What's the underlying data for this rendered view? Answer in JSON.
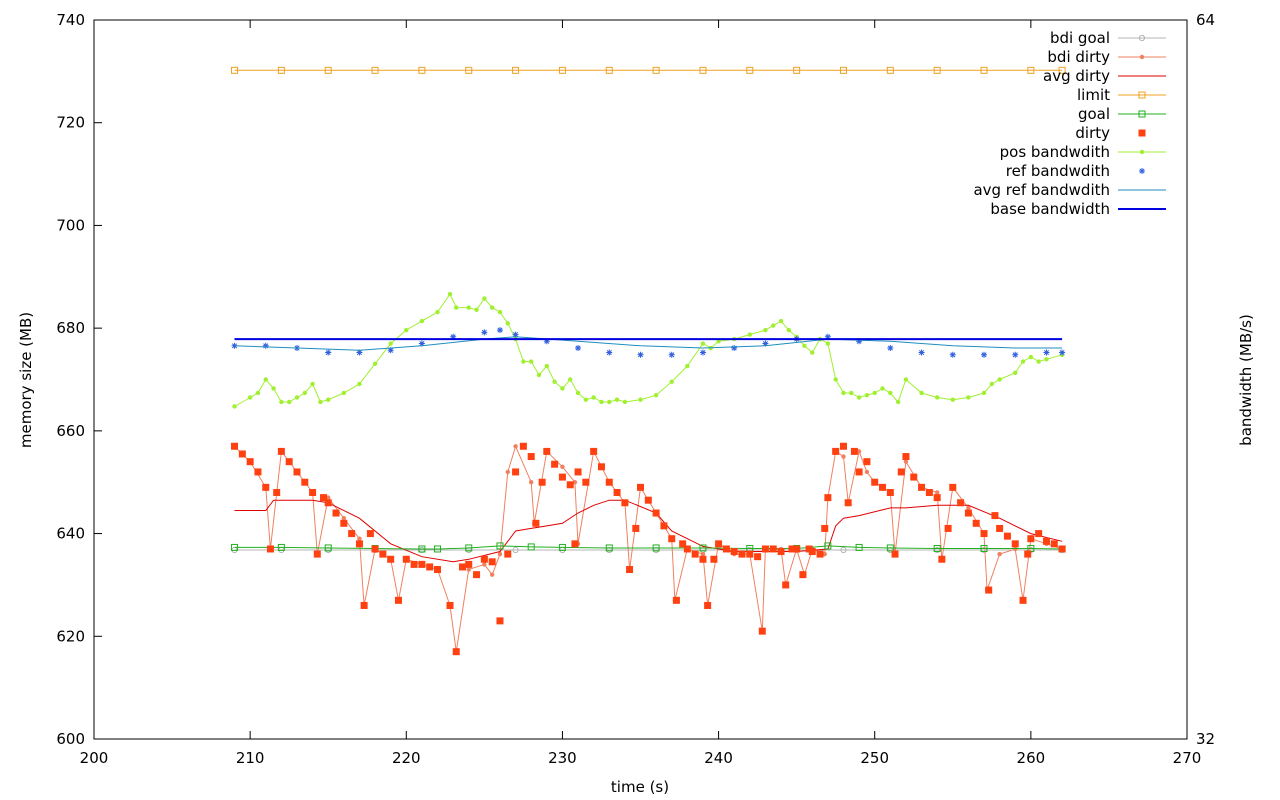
{
  "chart_data": {
    "type": "line",
    "xlabel": "time (s)",
    "ylabel": "memory size (MB)",
    "y2label": "bandwidth (MB/s)",
    "xlim": [
      200,
      270
    ],
    "ylim": [
      600,
      740
    ],
    "y2lim": [
      32,
      64
    ],
    "x_ticks": [
      200,
      210,
      220,
      230,
      240,
      250,
      260,
      270
    ],
    "y_ticks": [
      600,
      620,
      640,
      660,
      680,
      700,
      720,
      740
    ],
    "y2_ticks": [
      32,
      64
    ],
    "legend_position": "top-right",
    "grid": false,
    "series": [
      {
        "name": "bdi goal",
        "color": "#b4b4b4",
        "axis": "y",
        "style": "linespoints",
        "marker": "circle",
        "x": [
          209,
          212,
          215,
          218,
          221,
          224,
          227,
          230,
          233,
          236,
          239,
          242,
          245,
          248,
          251,
          254,
          257,
          260,
          262
        ],
        "y": [
          636.8,
          636.8,
          636.8,
          636.8,
          636.8,
          636.8,
          636.8,
          636.8,
          636.8,
          636.8,
          636.8,
          636.8,
          636.8,
          636.8,
          636.8,
          636.8,
          636.8,
          636.8,
          636.8
        ]
      },
      {
        "name": "bdi dirty",
        "color": "#f08060",
        "axis": "y",
        "style": "linespoints",
        "marker": "dot",
        "x": [
          209,
          210,
          211,
          211.3,
          212,
          213,
          214,
          214.3,
          215,
          216,
          217,
          217.3,
          218,
          219,
          219.5,
          220,
          221,
          222,
          222.8,
          223.2,
          224,
          225,
          225.5,
          226,
          226.5,
          227,
          228,
          228.2,
          229,
          230,
          230.8,
          231,
          232,
          233,
          234,
          234.3,
          235,
          236,
          237,
          237.2,
          238,
          239,
          239.3,
          240,
          241,
          242,
          242.8,
          243,
          244,
          244.3,
          245,
          245.5,
          246,
          246.8,
          247,
          247.5,
          248,
          248.3,
          249,
          249.5,
          250,
          251,
          251.3,
          252,
          253,
          254,
          254.3,
          255,
          256,
          257,
          257.2,
          258,
          259,
          259.5,
          260,
          261,
          262
        ],
        "y": [
          657,
          654,
          649,
          637,
          656,
          652,
          648,
          636,
          647,
          643,
          639,
          626,
          637,
          635,
          627,
          635,
          634,
          633,
          626,
          617,
          633,
          634,
          632,
          636,
          652,
          657,
          650,
          642,
          656,
          653,
          650,
          638,
          656,
          650,
          646,
          633,
          649,
          644,
          639,
          627,
          637,
          636,
          626,
          638,
          636,
          636,
          621,
          637,
          637,
          630,
          637,
          632,
          637,
          636,
          647,
          656,
          655,
          646,
          656,
          652,
          650,
          648,
          636,
          654,
          649,
          648,
          635,
          649,
          645,
          640,
          629,
          636,
          637,
          627,
          639,
          638,
          637
        ]
      },
      {
        "name": "avg dirty",
        "color": "#e00000",
        "axis": "y",
        "style": "lines",
        "x": [
          209,
          211,
          211.5,
          214,
          215,
          217,
          219,
          221,
          223,
          224,
          226,
          226.5,
          227,
          228,
          229,
          230,
          231,
          232,
          233,
          234,
          236,
          237,
          239,
          241,
          243,
          245,
          247,
          247.5,
          248,
          249,
          251,
          252,
          254,
          256,
          258,
          260,
          262
        ],
        "y": [
          644.5,
          644.5,
          646.5,
          646.5,
          646,
          643,
          638,
          635.5,
          634.5,
          635,
          636.5,
          638.5,
          640.5,
          641,
          641.5,
          642,
          644,
          645.5,
          646.5,
          646.5,
          644,
          640.5,
          637.5,
          636.5,
          636.5,
          636.5,
          637,
          641.5,
          643,
          643.5,
          645,
          645,
          645.5,
          645.5,
          643,
          640,
          638.5
        ]
      },
      {
        "name": "limit",
        "color": "#f0a020",
        "axis": "y",
        "style": "linespoints",
        "marker": "square",
        "x": [
          209,
          212,
          215,
          218,
          221,
          224,
          227,
          230,
          233,
          236,
          239,
          242,
          245,
          248,
          251,
          254,
          257,
          260,
          262
        ],
        "y": [
          730.2,
          730.2,
          730.2,
          730.2,
          730.2,
          730.2,
          730.2,
          730.2,
          730.2,
          730.2,
          730.2,
          730.2,
          730.2,
          730.2,
          730.2,
          730.2,
          730.2,
          730.2,
          730.2
        ]
      },
      {
        "name": "goal",
        "color": "#20b020",
        "axis": "y",
        "style": "linespoints",
        "marker": "square",
        "x": [
          209,
          212,
          215,
          218,
          221,
          222,
          224,
          226,
          228,
          230,
          233,
          236,
          239,
          242,
          245,
          247,
          249,
          251,
          254,
          257,
          260,
          262
        ],
        "y": [
          637.3,
          637.3,
          637.2,
          637.1,
          637,
          637,
          637.2,
          637.6,
          637.4,
          637.3,
          637.2,
          637.2,
          637.2,
          637.1,
          637.1,
          637.6,
          637.3,
          637.2,
          637.1,
          637.1,
          637.1,
          637
        ]
      },
      {
        "name": "dirty",
        "color": "#ff4010",
        "axis": "y",
        "style": "points",
        "marker": "filled-square",
        "x": [
          209,
          209.5,
          210,
          210.5,
          211,
          211.3,
          211.7,
          212,
          212.5,
          213,
          213.5,
          214,
          214.3,
          214.7,
          215,
          215.5,
          216,
          216.5,
          217,
          217.3,
          217.7,
          218,
          218.5,
          219,
          219.5,
          220,
          220.5,
          221,
          221.5,
          222,
          222.8,
          223.2,
          223.6,
          224,
          224.5,
          225,
          225.5,
          226,
          226.5,
          227,
          227.5,
          228,
          228.3,
          228.7,
          229,
          229.5,
          230,
          230.5,
          230.8,
          231,
          231.5,
          232,
          232.5,
          233,
          233.5,
          234,
          234.3,
          234.7,
          235,
          235.5,
          236,
          236.5,
          237,
          237.3,
          237.7,
          238,
          238.5,
          239,
          239.3,
          239.7,
          240,
          240.5,
          241,
          241.5,
          242,
          242.5,
          242.8,
          243,
          243.5,
          244,
          244.3,
          244.7,
          245,
          245.4,
          245.8,
          246,
          246.5,
          246.8,
          247,
          247.5,
          248,
          248.3,
          248.7,
          249,
          249.5,
          250,
          250.5,
          251,
          251.3,
          251.7,
          252,
          252.5,
          253,
          253.5,
          254,
          254.3,
          254.7,
          255,
          255.5,
          256,
          256.5,
          257,
          257.3,
          257.7,
          258,
          258.5,
          259,
          259.5,
          259.8,
          260,
          260.5,
          261,
          261.5,
          262
        ],
        "y": [
          657,
          655.5,
          654,
          652,
          649,
          637,
          648,
          656,
          654,
          652,
          650,
          648,
          636,
          647,
          646,
          644,
          642,
          640,
          638,
          626,
          640,
          637,
          636,
          635,
          627,
          635,
          634,
          634,
          633.5,
          633,
          626,
          617,
          633.5,
          634,
          632,
          635,
          634.5,
          623,
          636,
          652,
          657,
          655,
          642,
          650,
          656,
          653.5,
          651,
          649.5,
          638,
          652,
          650,
          656,
          653,
          650,
          648,
          646,
          633,
          641,
          649,
          646.5,
          644,
          641.5,
          639,
          627,
          638,
          637,
          636,
          635,
          626,
          635,
          638,
          637,
          636.5,
          636,
          636,
          635.5,
          621,
          637,
          637,
          636.5,
          630,
          637,
          637,
          632,
          637,
          636.5,
          636,
          641,
          647,
          656,
          657,
          646,
          656,
          652,
          654,
          650,
          649,
          648,
          636,
          652,
          655,
          651,
          649,
          648,
          647,
          635,
          641,
          649,
          646,
          644,
          642,
          640,
          629,
          643.5,
          641,
          639.5,
          638,
          627,
          636,
          639,
          640,
          638.5,
          638,
          637
        ]
      },
      {
        "name": "pos bandwdith",
        "color": "#a0f030",
        "axis": "y2",
        "style": "linespoints",
        "marker": "dot",
        "x": [
          209,
          210,
          210.5,
          211,
          211.5,
          212,
          212.5,
          213,
          213.5,
          214,
          214.5,
          215,
          216,
          217,
          218,
          219,
          220,
          221,
          222,
          222.8,
          223.2,
          224,
          224.5,
          225,
          225.5,
          226,
          226.5,
          227,
          227.5,
          228,
          228.5,
          229,
          229.5,
          230,
          230.5,
          231,
          231.5,
          232,
          232.5,
          233,
          233.5,
          234,
          235,
          236,
          237,
          238,
          239,
          239.5,
          240,
          241,
          242,
          243,
          243.5,
          244,
          244.5,
          245,
          245.5,
          246,
          246.5,
          247,
          247.5,
          248,
          248.5,
          249,
          249.5,
          250,
          250.5,
          251,
          251.5,
          252,
          253,
          254,
          255,
          256,
          257,
          257.5,
          258,
          259,
          259.5,
          260,
          260.5,
          261,
          262
        ],
        "y": [
          46.8,
          47.2,
          47.4,
          48.0,
          47.6,
          47.0,
          47.0,
          47.2,
          47.4,
          47.8,
          47.0,
          47.1,
          47.4,
          47.8,
          48.7,
          49.6,
          50.2,
          50.6,
          51.0,
          51.8,
          51.2,
          51.2,
          51.1,
          51.6,
          51.2,
          51.0,
          50.5,
          49.8,
          48.8,
          48.8,
          48.2,
          48.6,
          47.9,
          47.6,
          48.0,
          47.4,
          47.1,
          47.2,
          47.0,
          47.0,
          47.1,
          47.0,
          47.1,
          47.3,
          47.9,
          48.6,
          49.6,
          49.4,
          49.7,
          49.8,
          50.0,
          50.2,
          50.4,
          50.6,
          50.2,
          49.9,
          49.5,
          49.2,
          49.8,
          49.6,
          48.0,
          47.4,
          47.4,
          47.2,
          47.3,
          47.4,
          47.6,
          47.4,
          47.0,
          48.0,
          47.4,
          47.2,
          47.1,
          47.2,
          47.4,
          47.8,
          48.0,
          48.3,
          48.8,
          49.0,
          48.8,
          48.9,
          49.1
        ]
      },
      {
        "name": "ref bandwdith",
        "color": "#3060e0",
        "axis": "y2",
        "style": "points",
        "marker": "star",
        "x": [
          209,
          211,
          213,
          215,
          217,
          219,
          221,
          223,
          225,
          226,
          227,
          229,
          231,
          233,
          235,
          237,
          239,
          241,
          243,
          245,
          247,
          249,
          251,
          253,
          255,
          257,
          259,
          261,
          262
        ],
        "y": [
          49.5,
          49.5,
          49.4,
          49.2,
          49.2,
          49.3,
          49.6,
          49.9,
          50.1,
          50.2,
          50.0,
          49.7,
          49.4,
          49.2,
          49.1,
          49.1,
          49.2,
          49.4,
          49.6,
          49.8,
          49.9,
          49.7,
          49.4,
          49.2,
          49.1,
          49.1,
          49.1,
          49.2,
          49.2
        ]
      },
      {
        "name": "avg ref bandwdith",
        "color": "#1e8ec0",
        "axis": "y2",
        "style": "lines",
        "x": [
          209,
          213,
          217,
          221,
          225,
          227,
          231,
          235,
          239,
          243,
          247,
          251,
          255,
          259,
          262
        ],
        "y": [
          49.5,
          49.4,
          49.3,
          49.5,
          49.8,
          49.9,
          49.7,
          49.5,
          49.4,
          49.5,
          49.8,
          49.7,
          49.5,
          49.4,
          49.4
        ]
      },
      {
        "name": "base bandwidth",
        "color": "#0000e0",
        "axis": "y2",
        "style": "lines",
        "x": [
          209,
          262
        ],
        "y": [
          49.8,
          49.8
        ]
      }
    ]
  }
}
